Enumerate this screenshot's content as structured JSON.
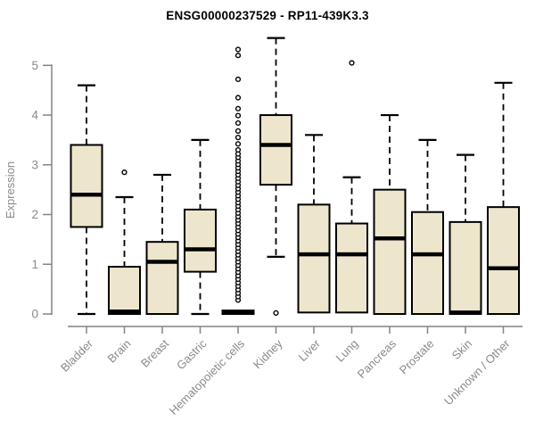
{
  "colors": {
    "box_fill": "#EDE6CC",
    "box_stroke": "#000000",
    "median": "#000000",
    "whisker": "#000000",
    "axis": "#848484",
    "tick_label": "#8A8A8A",
    "title": "#000000",
    "background": "#FFFFFF"
  },
  "chart_data": {
    "type": "boxplot",
    "title": "ENSG00000237529 - RP11-439K3.3",
    "ylabel": "Expression",
    "xlabel": "",
    "ylim": [
      0,
      5.6
    ],
    "yticks": [
      0,
      1,
      2,
      3,
      4,
      5
    ],
    "grid": false,
    "legend": "none",
    "categories": [
      "Bladder",
      "Brain",
      "Breast",
      "Gastric",
      "Hematopoietic cells",
      "Kidney",
      "Liver",
      "Lung",
      "Pancreas",
      "Prostate",
      "Skin",
      "Unknown / Other"
    ],
    "series": [
      {
        "name": "Bladder",
        "low": 0,
        "q1": 1.75,
        "median": 2.4,
        "q3": 3.4,
        "high": 4.6,
        "outliers": []
      },
      {
        "name": "Brain",
        "low": 0,
        "q1": 0,
        "median": 0.05,
        "q3": 0.95,
        "high": 2.35,
        "outliers": [
          2.85
        ]
      },
      {
        "name": "Breast",
        "low": 0,
        "q1": 0,
        "median": 1.05,
        "q3": 1.45,
        "high": 2.8,
        "outliers": []
      },
      {
        "name": "Gastric",
        "low": 0,
        "q1": 0.85,
        "median": 1.3,
        "q3": 2.1,
        "high": 3.5,
        "outliers": []
      },
      {
        "name": "Hematopoietic cells",
        "low": 0,
        "q1": 0,
        "median": 0.03,
        "q3": 0.07,
        "high": 0.1,
        "outliers": [
          0.28,
          0.35,
          0.42,
          0.49,
          0.56,
          0.63,
          0.7,
          0.77,
          0.84,
          0.91,
          0.98,
          1.05,
          1.12,
          1.19,
          1.26,
          1.33,
          1.4,
          1.47,
          1.54,
          1.61,
          1.68,
          1.75,
          1.82,
          1.89,
          1.96,
          2.03,
          2.1,
          2.17,
          2.24,
          2.31,
          2.38,
          2.45,
          2.52,
          2.59,
          2.66,
          2.73,
          2.8,
          2.87,
          2.94,
          3.01,
          3.08,
          3.15,
          3.22,
          3.3,
          3.42,
          3.55,
          3.68,
          3.84,
          3.99,
          4.13,
          4.35,
          4.72,
          5.2,
          5.32
        ]
      },
      {
        "name": "Kidney",
        "low": 1.15,
        "q1": 2.6,
        "median": 3.4,
        "q3": 4.0,
        "high": 5.55,
        "outliers": [
          0.02
        ]
      },
      {
        "name": "Liver",
        "low": 0,
        "q1": 0.03,
        "median": 1.2,
        "q3": 2.2,
        "high": 3.6,
        "outliers": []
      },
      {
        "name": "Lung",
        "low": 0,
        "q1": 0.03,
        "median": 1.2,
        "q3": 1.82,
        "high": 2.75,
        "outliers": [
          5.05
        ]
      },
      {
        "name": "Pancreas",
        "low": 0,
        "q1": 0,
        "median": 1.52,
        "q3": 2.5,
        "high": 4.0,
        "outliers": []
      },
      {
        "name": "Prostate",
        "low": 0,
        "q1": 0,
        "median": 1.2,
        "q3": 2.05,
        "high": 3.5,
        "outliers": []
      },
      {
        "name": "Skin",
        "low": 0,
        "q1": 0,
        "median": 0.03,
        "q3": 1.85,
        "high": 3.2,
        "outliers": []
      },
      {
        "name": "Unknown / Other",
        "low": 0,
        "q1": 0,
        "median": 0.92,
        "q3": 2.15,
        "high": 4.65,
        "outliers": []
      }
    ]
  }
}
